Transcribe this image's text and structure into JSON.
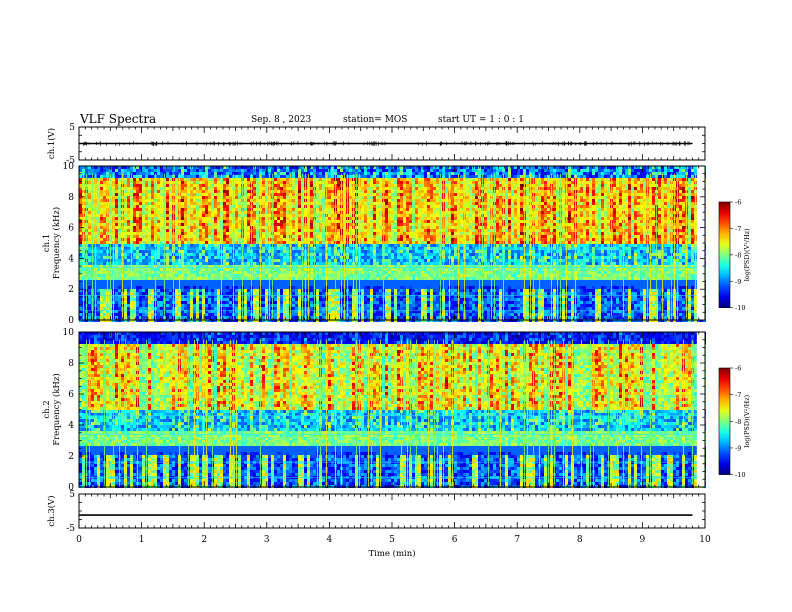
{
  "header": {
    "title": "VLF Spectra",
    "date": "Sep. 8 , 2023",
    "station": "station= MOS",
    "start": "start UT =  1 : 0 : 1"
  },
  "chart_data": [
    {
      "type": "line",
      "ylabel": "ch.1(V)",
      "ylim": [
        -5,
        5
      ],
      "y_ticks": [
        "5",
        "-5"
      ],
      "x": [
        0,
        9.8
      ],
      "y": [
        0,
        0
      ]
    },
    {
      "type": "heatmap",
      "ylabel": "ch.1\nFrequency (kHz)",
      "ylabel_lines": [
        "ch.1",
        "Frequency (kHz)"
      ],
      "ylim": [
        0,
        10
      ],
      "y_ticks": [
        "0",
        "2",
        "4",
        "6",
        "8",
        "10"
      ],
      "colorbar": {
        "label": "log(PSD)(V²/Hz)",
        "range": [
          -10,
          -6
        ],
        "ticks": [
          "-6",
          "-7",
          "-8",
          "-9",
          "-10"
        ]
      }
    },
    {
      "type": "heatmap",
      "ylabel": "ch.2\nFrequency (kHz)",
      "ylabel_lines": [
        "ch.2",
        "Frequency (kHz)"
      ],
      "ylim": [
        0,
        10
      ],
      "y_ticks": [
        "0",
        "2",
        "4",
        "6",
        "8",
        "10"
      ],
      "colorbar": {
        "label": "log(PSD)(V²/Hz)",
        "range": [
          -10,
          -6
        ],
        "ticks": [
          "-6",
          "-7",
          "-8",
          "-9",
          "-10"
        ]
      }
    },
    {
      "type": "line",
      "ylabel": "ch.3(V)",
      "ylim": [
        -5,
        5
      ],
      "y_ticks": [
        "5",
        "-5"
      ],
      "x": [
        0,
        9.8
      ],
      "y": [
        -1.2,
        -1.2
      ]
    }
  ],
  "xaxis": {
    "label": "Time  (min)",
    "range": [
      0,
      10
    ],
    "ticks": [
      "0",
      "1",
      "2",
      "3",
      "4",
      "5",
      "6",
      "7",
      "8",
      "9",
      "10"
    ]
  }
}
